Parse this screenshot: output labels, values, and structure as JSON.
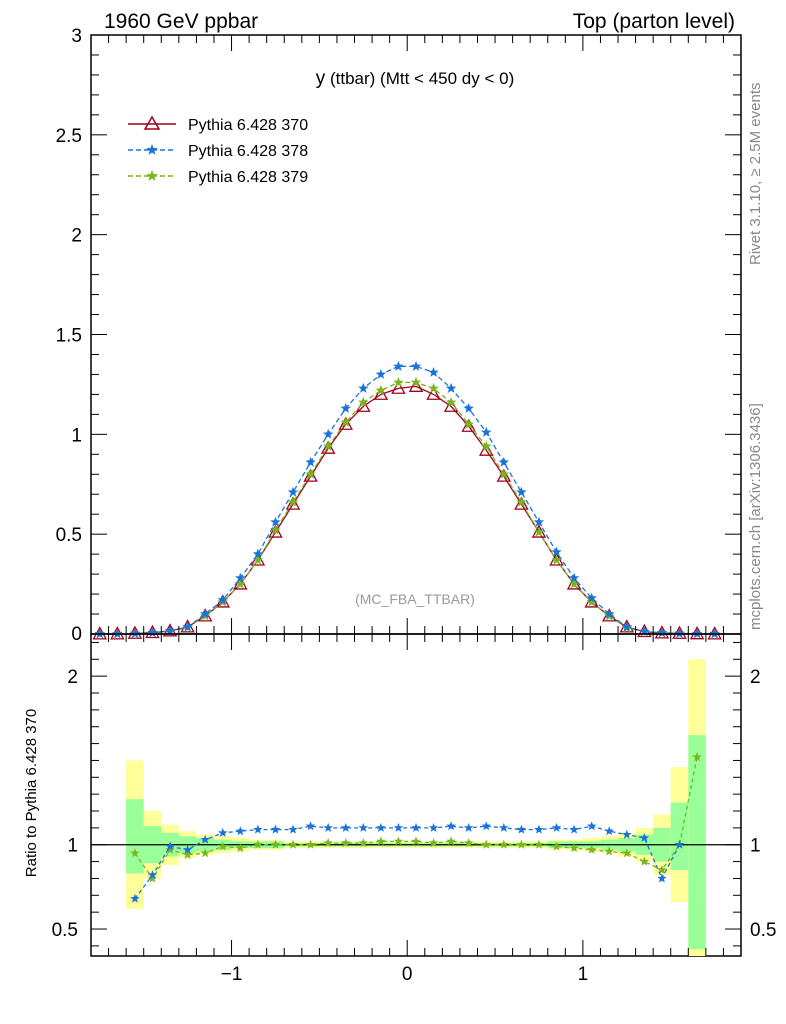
{
  "header": {
    "left": "1960 GeV ppbar",
    "right": "Top (parton level)"
  },
  "side": {
    "rivet": "Rivet 3.1.10, ≥ 2.5M events",
    "mcplots": "mcplots.cern.ch [arXiv:1306.3436]"
  },
  "plot": {
    "title_main": "y",
    "title_rest": " (ttbar) (Mtt < 450 dy < 0)",
    "watermark": "(MC_FBA_TTBAR)",
    "ratio_ylabel": "Ratio to Pythia 6.428 370"
  },
  "colors": {
    "s370": "#a0001e",
    "s378": "#1a73d9",
    "s379": "#7ab51d",
    "band_green": "#99ff99",
    "band_yellow": "#ffff99"
  },
  "chart_data": {
    "type": "line",
    "x": [
      -1.75,
      -1.65,
      -1.55,
      -1.45,
      -1.35,
      -1.25,
      -1.15,
      -1.05,
      -0.95,
      -0.85,
      -0.75,
      -0.65,
      -0.55,
      -0.45,
      -0.35,
      -0.25,
      -0.15,
      -0.05,
      0.05,
      0.15,
      0.25,
      0.35,
      0.45,
      0.55,
      0.65,
      0.75,
      0.85,
      0.95,
      1.05,
      1.15,
      1.25,
      1.35,
      1.45,
      1.55,
      1.65,
      1.75
    ],
    "series": [
      {
        "name": "Pythia 6.428 370",
        "marker": "triangle",
        "dash": "solid",
        "values": [
          0.0,
          0.0,
          0.003,
          0.007,
          0.015,
          0.035,
          0.09,
          0.16,
          0.25,
          0.37,
          0.51,
          0.65,
          0.79,
          0.93,
          1.05,
          1.14,
          1.2,
          1.23,
          1.24,
          1.2,
          1.14,
          1.04,
          0.92,
          0.79,
          0.65,
          0.51,
          0.37,
          0.25,
          0.16,
          0.09,
          0.035,
          0.012,
          0.005,
          0.003,
          0.001,
          0.0
        ]
      },
      {
        "name": "Pythia 6.428 378",
        "marker": "star",
        "dash": "dashed",
        "values": [
          0.0,
          0.0,
          0.002,
          0.006,
          0.015,
          0.035,
          0.1,
          0.17,
          0.28,
          0.4,
          0.56,
          0.71,
          0.86,
          1.0,
          1.13,
          1.23,
          1.3,
          1.34,
          1.34,
          1.31,
          1.23,
          1.13,
          1.01,
          0.86,
          0.71,
          0.56,
          0.41,
          0.28,
          0.18,
          0.1,
          0.035,
          0.012,
          0.005,
          0.003,
          0.001,
          0.0
        ]
      },
      {
        "name": "Pythia 6.428 379",
        "marker": "star",
        "dash": "dashed",
        "values": [
          0.0,
          0.0,
          0.003,
          0.006,
          0.015,
          0.033,
          0.09,
          0.16,
          0.25,
          0.37,
          0.52,
          0.66,
          0.8,
          0.94,
          1.06,
          1.16,
          1.22,
          1.26,
          1.26,
          1.23,
          1.16,
          1.05,
          0.94,
          0.8,
          0.66,
          0.51,
          0.37,
          0.25,
          0.16,
          0.09,
          0.03,
          0.012,
          0.005,
          0.003,
          0.001,
          0.0
        ]
      }
    ],
    "ratio": {
      "x": [
        -1.55,
        -1.45,
        -1.35,
        -1.25,
        -1.15,
        -1.05,
        -0.95,
        -0.85,
        -0.75,
        -0.65,
        -0.55,
        -0.45,
        -0.35,
        -0.25,
        -0.15,
        -0.05,
        0.05,
        0.15,
        0.25,
        0.35,
        0.45,
        0.55,
        0.65,
        0.75,
        0.85,
        0.95,
        1.05,
        1.15,
        1.25,
        1.35,
        1.45,
        1.55,
        1.65
      ],
      "s378": [
        0.68,
        0.82,
        0.99,
        0.97,
        1.03,
        1.07,
        1.08,
        1.09,
        1.09,
        1.09,
        1.11,
        1.1,
        1.1,
        1.1,
        1.1,
        1.1,
        1.1,
        1.1,
        1.11,
        1.1,
        1.11,
        1.1,
        1.09,
        1.09,
        1.1,
        1.09,
        1.11,
        1.08,
        1.06,
        1.04,
        0.8,
        1.0,
        null
      ],
      "s379": [
        0.95,
        0.8,
        0.97,
        0.94,
        0.95,
        0.99,
        0.98,
        1.0,
        1.0,
        1.0,
        1.0,
        1.01,
        1.01,
        1.01,
        1.02,
        1.02,
        1.02,
        1.01,
        1.02,
        1.01,
        1.0,
        1.0,
        1.0,
        1.0,
        0.99,
        0.98,
        0.97,
        0.96,
        0.95,
        0.9,
        0.85,
        1.0,
        1.52
      ],
      "band_green": [
        [
          0.83,
          1.27
        ],
        [
          0.89,
          1.11
        ],
        [
          0.93,
          1.07
        ],
        [
          0.95,
          1.05
        ],
        [
          0.96,
          1.04
        ],
        [
          0.97,
          1.03
        ],
        [
          0.98,
          1.02
        ],
        [
          0.98,
          1.02
        ],
        [
          0.98,
          1.02
        ],
        [
          0.99,
          1.01
        ],
        [
          0.99,
          1.01
        ],
        [
          0.99,
          1.01
        ],
        [
          0.99,
          1.01
        ],
        [
          0.99,
          1.01
        ],
        [
          0.99,
          1.01
        ],
        [
          0.99,
          1.01
        ],
        [
          0.99,
          1.01
        ],
        [
          0.99,
          1.01
        ],
        [
          0.99,
          1.01
        ],
        [
          0.99,
          1.01
        ],
        [
          0.99,
          1.01
        ],
        [
          0.99,
          1.01
        ],
        [
          0.99,
          1.01
        ],
        [
          0.99,
          1.01
        ],
        [
          0.98,
          1.02
        ],
        [
          0.98,
          1.02
        ],
        [
          0.98,
          1.02
        ],
        [
          0.97,
          1.03
        ],
        [
          0.96,
          1.04
        ],
        [
          0.94,
          1.06
        ],
        [
          0.9,
          1.1
        ],
        [
          0.85,
          1.25
        ],
        [
          0.38,
          1.65
        ]
      ],
      "band_yellow": [
        [
          0.62,
          1.5
        ],
        [
          0.8,
          1.2
        ],
        [
          0.88,
          1.12
        ],
        [
          0.92,
          1.08
        ],
        [
          0.94,
          1.06
        ],
        [
          0.95,
          1.05
        ],
        [
          0.96,
          1.04
        ],
        [
          0.97,
          1.03
        ],
        [
          0.97,
          1.03
        ],
        [
          0.98,
          1.02
        ],
        [
          0.98,
          1.02
        ],
        [
          0.98,
          1.02
        ],
        [
          0.98,
          1.02
        ],
        [
          0.98,
          1.02
        ],
        [
          0.98,
          1.02
        ],
        [
          0.98,
          1.02
        ],
        [
          0.98,
          1.02
        ],
        [
          0.98,
          1.02
        ],
        [
          0.98,
          1.02
        ],
        [
          0.98,
          1.02
        ],
        [
          0.98,
          1.02
        ],
        [
          0.98,
          1.02
        ],
        [
          0.98,
          1.02
        ],
        [
          0.98,
          1.02
        ],
        [
          0.97,
          1.03
        ],
        [
          0.97,
          1.03
        ],
        [
          0.96,
          1.04
        ],
        [
          0.95,
          1.05
        ],
        [
          0.93,
          1.07
        ],
        [
          0.9,
          1.1
        ],
        [
          0.82,
          1.18
        ],
        [
          0.66,
          1.46
        ],
        [
          0.3,
          2.1
        ]
      ]
    },
    "xlim": [
      -1.8,
      1.9
    ],
    "ylim": [
      0,
      3
    ],
    "ratio_ylim": [
      0.34,
      2.25
    ],
    "xticks": [
      -1,
      0,
      1
    ],
    "yticks": [
      0.5,
      1,
      1.5,
      2,
      2.5,
      3
    ],
    "ytick_labels": [
      "0.5",
      "1",
      "1.5",
      "2",
      "2.5",
      "3"
    ],
    "y_zero_label": "0",
    "ratio_yticks": [
      0.5,
      1,
      2
    ],
    "ratio_ytick_labels": [
      "0.5",
      "1",
      "2"
    ],
    "xtick_labels": [
      "−1",
      "0",
      "1"
    ]
  }
}
